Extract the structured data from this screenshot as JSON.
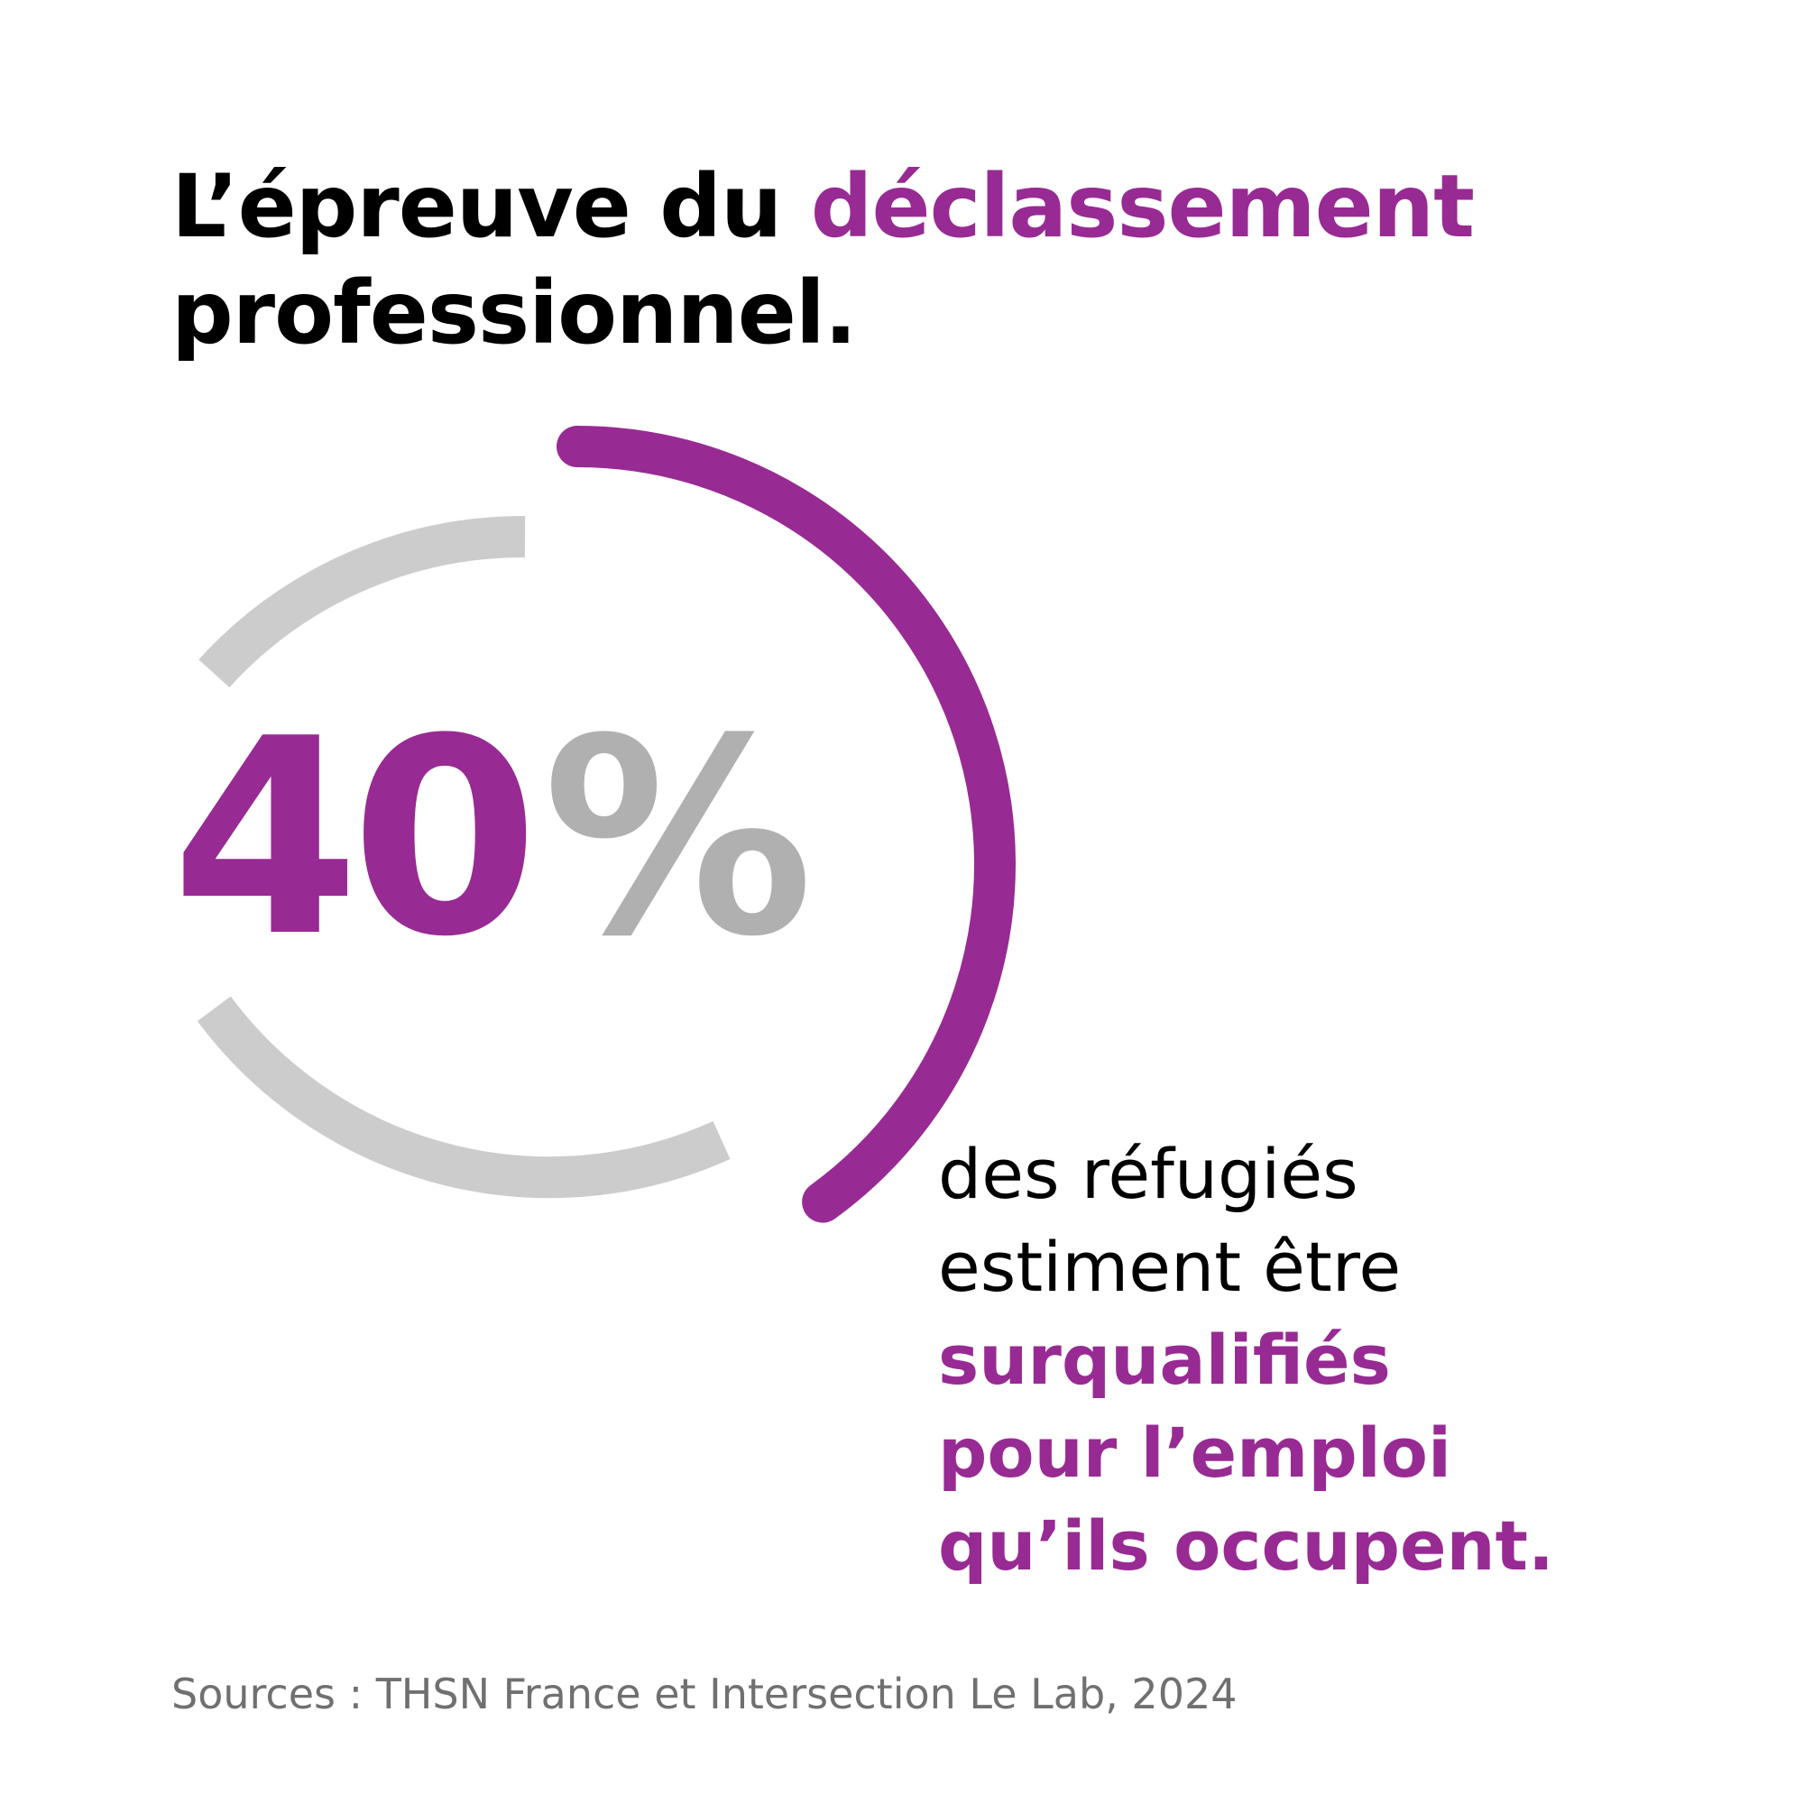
{
  "title": {
    "part1": "L’épreuve du ",
    "highlight": "déclassement",
    "line2": "professionnel."
  },
  "stat": {
    "number": "40",
    "unit": "%",
    "value_percent": 40
  },
  "caption": {
    "line1": "des réfugiés",
    "line2": "estiment être",
    "line3": "surqualifiés",
    "line4": "pour l’emploi",
    "line5": "qu’ils occupent."
  },
  "source": "Sources : THSN France et Intersection Le Lab, 2024",
  "colors": {
    "accent": "#982a93",
    "track": "#cccccc",
    "percent_sign": "#b0b0b0",
    "text": "#000000",
    "source": "#707070"
  }
}
